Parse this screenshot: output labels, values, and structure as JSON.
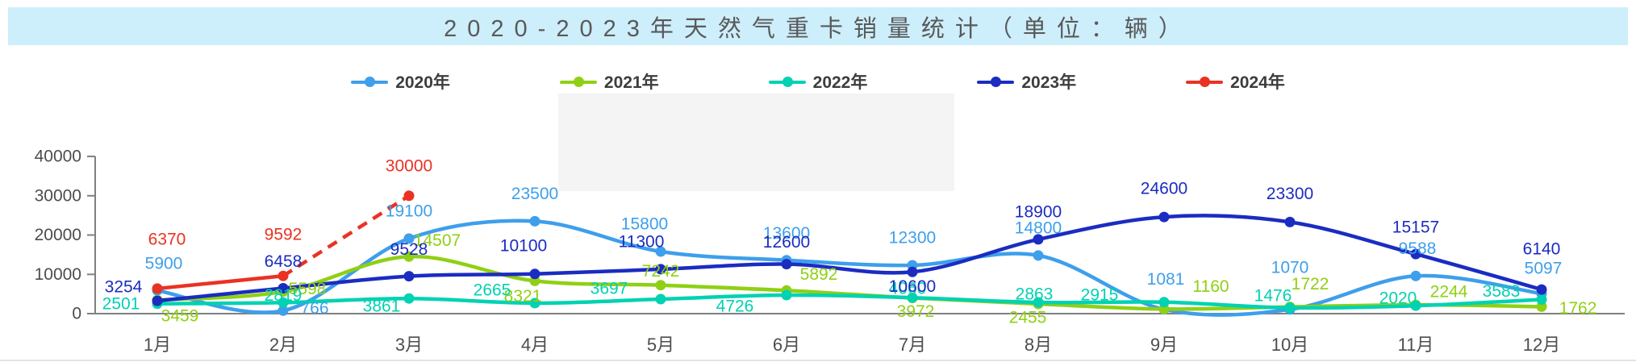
{
  "title": "2020-2023年天然气重卡销量统计（单位：辆）",
  "chart_data": {
    "type": "line",
    "title": "2020-2023年天然气重卡销量统计（单位：辆）",
    "categories": [
      "1月",
      "2月",
      "3月",
      "4月",
      "5月",
      "6月",
      "7月",
      "8月",
      "9月",
      "10月",
      "11月",
      "12月"
    ],
    "ylim": [
      0,
      40000
    ],
    "yticks": [
      0,
      10000,
      20000,
      30000,
      40000
    ],
    "grid": false,
    "legend_position": "top",
    "axis_color": "#808080",
    "tick_label_color": "#4d4d4d",
    "series": [
      {
        "name": "2020年",
        "color": "#3E9FEB",
        "style": "solid",
        "values": [
          5900,
          766,
          19100,
          23500,
          15800,
          13600,
          12300,
          14800,
          1081,
          1070,
          9588,
          5097
        ]
      },
      {
        "name": "2021年",
        "color": "#8FD014",
        "style": "solid",
        "values": [
          3459,
          5598,
          14507,
          8321,
          7242,
          5892,
          3972,
          2455,
          1160,
          1722,
          2244,
          1762
        ]
      },
      {
        "name": "2022年",
        "color": "#00D2B2",
        "style": "solid",
        "values": [
          2501,
          2819,
          3861,
          2665,
          3697,
          4726,
          4060,
          2863,
          2915,
          1476,
          2020,
          3583
        ]
      },
      {
        "name": "2023年",
        "color": "#1B2CC1",
        "style": "solid",
        "values": [
          3254,
          6458,
          9528,
          10100,
          11300,
          12600,
          10600,
          18900,
          24600,
          23300,
          15157,
          6140
        ]
      },
      {
        "name": "2024年",
        "color": "#EA3223",
        "style": "solid-then-dashed",
        "dashed_from": 1,
        "values": [
          6370,
          9592,
          30000,
          null,
          null,
          null,
          null,
          null,
          null,
          null,
          null,
          null
        ]
      }
    ]
  }
}
